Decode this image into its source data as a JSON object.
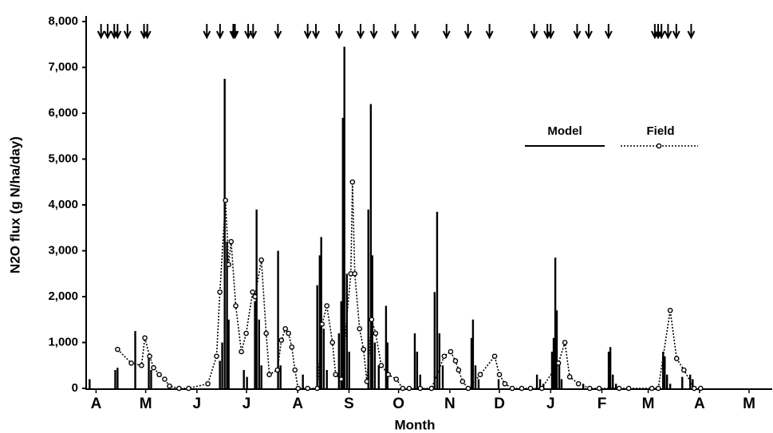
{
  "chart_data": {
    "type": "combo",
    "xlabel": "Month",
    "ylabel": "N2O flux (g N/ha/day)",
    "xlim": [
      9,
      424
    ],
    "ylim": [
      0,
      8000
    ],
    "yticks": [
      0,
      {
        "value": 1000,
        "label": "1,000"
      },
      {
        "value": 2000,
        "label": "2,000"
      },
      {
        "value": 3000,
        "label": "3,000"
      },
      {
        "value": 4000,
        "label": "4,000"
      },
      {
        "value": 5000,
        "label": "5,000"
      },
      {
        "value": 6000,
        "label": "6,000"
      },
      {
        "value": 7000,
        "label": "7,000"
      },
      {
        "value": 8000,
        "label": "8,000"
      }
    ],
    "xticks": [
      {
        "value": 15,
        "label": "A"
      },
      {
        "value": 45,
        "label": "M"
      },
      {
        "value": 76,
        "label": "J"
      },
      {
        "value": 106,
        "label": "J"
      },
      {
        "value": 137,
        "label": "A"
      },
      {
        "value": 168,
        "label": "S"
      },
      {
        "value": 198,
        "label": "O"
      },
      {
        "value": 229,
        "label": "N"
      },
      {
        "value": 259,
        "label": "D"
      },
      {
        "value": 290,
        "label": "J"
      },
      {
        "value": 321,
        "label": "F"
      },
      {
        "value": 349,
        "label": "M"
      },
      {
        "value": 380,
        "label": "A"
      },
      {
        "value": 410,
        "label": "M"
      }
    ],
    "legend": "right",
    "arrows": [
      18,
      22,
      26,
      28,
      34,
      44,
      46,
      82,
      90,
      98,
      99,
      107,
      110,
      125,
      143,
      148,
      162,
      175,
      183,
      196,
      208,
      227,
      240,
      253,
      280,
      288,
      290,
      306,
      313,
      325,
      353,
      355,
      357,
      361,
      366,
      375
    ],
    "series": [
      {
        "name": "Model",
        "type": "bar",
        "color": "#000000",
        "x": [
          11.1,
          26.6,
          28.0,
          38.7,
          46.9,
          48.3,
          89.9,
          91.3,
          92.8,
          94.2,
          95.2,
          104.4,
          106.3,
          111.1,
          112.1,
          113.6,
          115.0,
          125.1,
          126.6,
          140.1,
          148.8,
          150.3,
          151.2,
          152.7,
          154.6,
          161.9,
          163.3,
          164.3,
          165.2,
          166.7,
          168.1,
          179.7,
          181.2,
          182.1,
          183.6,
          186.0,
          190.4,
          191.3,
          207.8,
          209.2,
          211.1,
          219.8,
          221.3,
          222.7,
          224.7,
          242.1,
          243.0,
          244.5,
          246.4,
          258.5,
          281.7,
          283.6,
          285.6,
          290.8,
          291.8,
          292.8,
          293.7,
          295.2,
          296.6,
          309.7,
          325.1,
          326.1,
          327.6,
          329.5,
          358.0,
          359.0,
          360.4,
          362.3,
          369.6,
          374.4,
          375.9
        ],
        "values": [
          200,
          400,
          450,
          1250,
          700,
          400,
          600,
          1000,
          6750,
          3200,
          1500,
          400,
          250,
          1900,
          3900,
          1500,
          500,
          3000,
          500,
          300,
          2250,
          2900,
          3300,
          1300,
          400,
          1200,
          1900,
          5900,
          7450,
          2500,
          800,
          3900,
          6200,
          2900,
          1000,
          500,
          1800,
          1000,
          1200,
          800,
          300,
          2100,
          3850,
          1200,
          500,
          1100,
          1500,
          500,
          200,
          200,
          300,
          200,
          100,
          800,
          1100,
          2850,
          1700,
          600,
          200,
          100,
          800,
          900,
          300,
          100,
          800,
          700,
          300,
          100,
          250,
          300,
          200
        ]
      },
      {
        "name": "Field",
        "type": "line",
        "color": "#000000",
        "x": [
          28.0,
          36.3,
          42.5,
          44.5,
          47.4,
          49.8,
          53.2,
          56.5,
          59.4,
          65.2,
          71.0,
          82.6,
          87.9,
          89.9,
          93.3,
          95.2,
          96.7,
          99.5,
          102.9,
          105.8,
          109.7,
          111.1,
          115.0,
          117.9,
          119.8,
          124.7,
          127.1,
          129.5,
          131.4,
          133.4,
          135.3,
          137.2,
          143.0,
          148.8,
          151.7,
          154.6,
          158.0,
          159.9,
          163.3,
          169.1,
          170.1,
          171.5,
          174.4,
          176.8,
          178.8,
          181.7,
          184.1,
          187.5,
          191.8,
          196.6,
          200.5,
          204.4,
          211.1,
          217.9,
          225.6,
          229.5,
          232.4,
          234.3,
          236.7,
          240.1,
          247.4,
          256.1,
          259.0,
          262.3,
          266.7,
          272.5,
          277.8,
          284.6,
          294.7,
          298.6,
          301.5,
          306.8,
          313.6,
          319.3,
          331.4,
          337.2,
          351.2,
          355.1,
          362.3,
          366.2,
          370.6,
          376.8,
          380.7
        ],
        "values": [
          850,
          550,
          500,
          1100,
          700,
          450,
          300,
          200,
          50,
          0,
          0,
          100,
          700,
          2100,
          4100,
          2700,
          3200,
          1800,
          800,
          1200,
          2100,
          2000,
          2800,
          1200,
          300,
          400,
          1050,
          1300,
          1200,
          900,
          400,
          0,
          0,
          0,
          1400,
          1800,
          1000,
          300,
          200,
          2500,
          4500,
          2500,
          1300,
          850,
          150,
          1500,
          1200,
          500,
          300,
          200,
          0,
          0,
          0,
          0,
          700,
          800,
          600,
          400,
          150,
          0,
          300,
          700,
          300,
          100,
          0,
          0,
          0,
          0,
          550,
          1000,
          250,
          100,
          0,
          0,
          0,
          0,
          0,
          0,
          1700,
          650,
          400,
          0,
          0
        ]
      }
    ]
  }
}
